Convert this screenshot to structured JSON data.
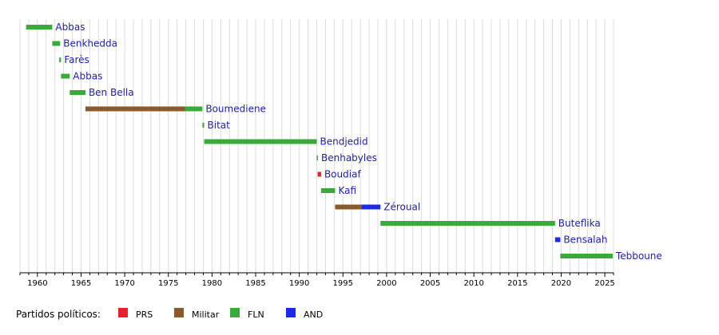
{
  "chart_data": {
    "type": "bar",
    "orientation": "horizontal-timeline",
    "x_range": [
      1958,
      2026
    ],
    "x_ticks": [
      1960,
      1965,
      1970,
      1975,
      1980,
      1985,
      1990,
      1995,
      2000,
      2005,
      2010,
      2015,
      2020,
      2025
    ],
    "grid": "vertical, yearly",
    "legend_title": "Partidos políticos:",
    "legend_placement": "bottom-left",
    "parties": [
      {
        "key": "PRS",
        "label": "PRS",
        "color": "#e8202a"
      },
      {
        "key": "Militar",
        "label": "Militar",
        "color": "#8b5a2b"
      },
      {
        "key": "FLN",
        "label": "FLN",
        "color": "#3aaa3a"
      },
      {
        "key": "AND",
        "label": "AND",
        "color": "#1f2ae8"
      }
    ],
    "rows": [
      {
        "name": "Abbas",
        "segments": [
          {
            "party": "FLN",
            "start": 1958.7,
            "end": 1961.7
          }
        ]
      },
      {
        "name": "Benkhedda",
        "segments": [
          {
            "party": "FLN",
            "start": 1961.7,
            "end": 1962.6
          }
        ]
      },
      {
        "name": "Farès",
        "segments": [
          {
            "party": "FLN",
            "start": 1962.5,
            "end": 1962.7
          }
        ]
      },
      {
        "name": "Abbas",
        "segments": [
          {
            "party": "FLN",
            "start": 1962.7,
            "end": 1963.7
          }
        ]
      },
      {
        "name": "Ben Bella",
        "segments": [
          {
            "party": "FLN",
            "start": 1963.7,
            "end": 1965.5
          }
        ]
      },
      {
        "name": "Boumediene",
        "segments": [
          {
            "party": "Militar",
            "start": 1965.5,
            "end": 1976.9
          },
          {
            "party": "FLN",
            "start": 1976.9,
            "end": 1978.9
          }
        ]
      },
      {
        "name": "Bitat",
        "segments": [
          {
            "party": "FLN",
            "start": 1978.9,
            "end": 1979.1
          }
        ]
      },
      {
        "name": "Bendjedid",
        "segments": [
          {
            "party": "FLN",
            "start": 1979.1,
            "end": 1992.0
          }
        ]
      },
      {
        "name": "Benhabyles",
        "segments": [
          {
            "party": "FLN",
            "start": 1992.0,
            "end": 1992.1
          }
        ]
      },
      {
        "name": "Boudiaf",
        "segments": [
          {
            "party": "PRS",
            "start": 1992.1,
            "end": 1992.5
          }
        ]
      },
      {
        "name": "Kafi",
        "segments": [
          {
            "party": "FLN",
            "start": 1992.5,
            "end": 1994.1
          }
        ]
      },
      {
        "name": "Zéroual",
        "segments": [
          {
            "party": "Militar",
            "start": 1994.1,
            "end": 1997.1
          },
          {
            "party": "AND",
            "start": 1997.1,
            "end": 1999.3
          }
        ]
      },
      {
        "name": "Buteflika",
        "segments": [
          {
            "party": "FLN",
            "start": 1999.3,
            "end": 2019.3
          }
        ]
      },
      {
        "name": "Bensalah",
        "segments": [
          {
            "party": "AND",
            "start": 2019.3,
            "end": 2019.9
          }
        ]
      },
      {
        "name": "Tebboune",
        "segments": [
          {
            "party": "FLN",
            "start": 2019.9,
            "end": 2025.9
          }
        ]
      }
    ]
  }
}
